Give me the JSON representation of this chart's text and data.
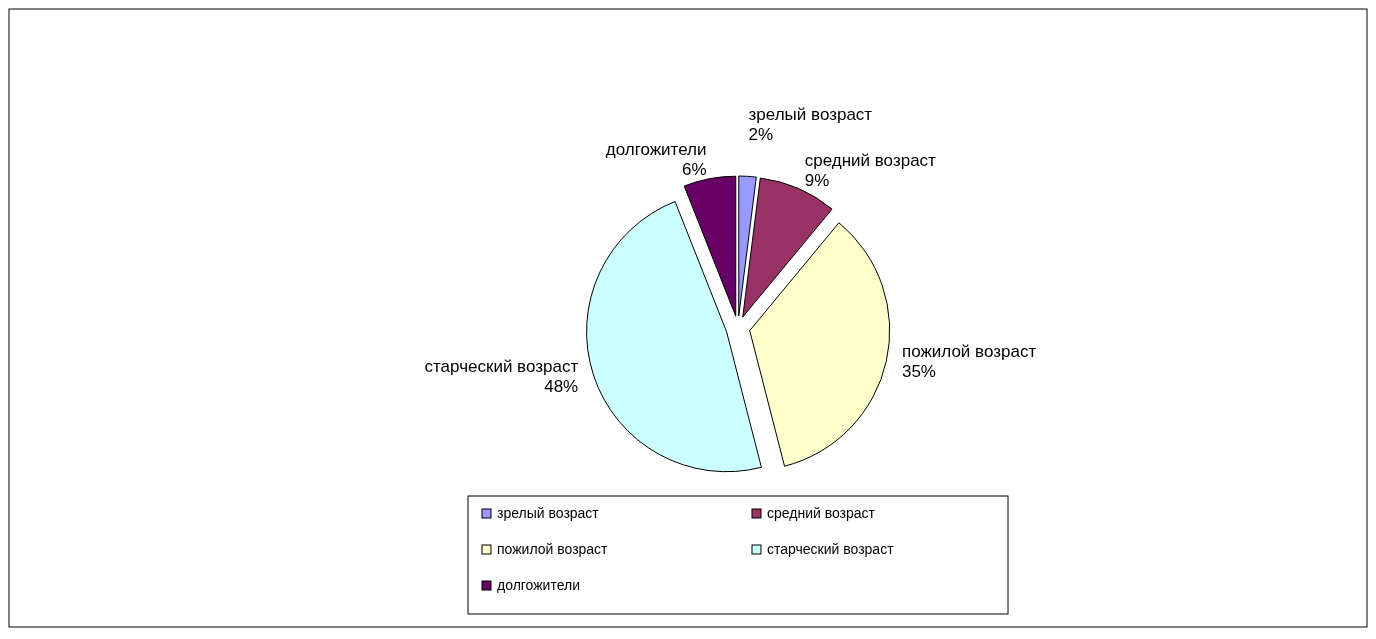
{
  "chart_data": {
    "type": "pie",
    "categories": [
      "зрелый возраст",
      "средний возраст",
      "пожилой возраст",
      "старческий возраст",
      "долгожители"
    ],
    "values": [
      2,
      9,
      35,
      48,
      6
    ],
    "colors": [
      "#9999ff",
      "#993366",
      "#ffffcc",
      "#ccffff",
      "#660066"
    ],
    "value_labels": [
      "2%",
      "9%",
      "35%",
      "48%",
      "6%"
    ],
    "legend": "bottom"
  }
}
